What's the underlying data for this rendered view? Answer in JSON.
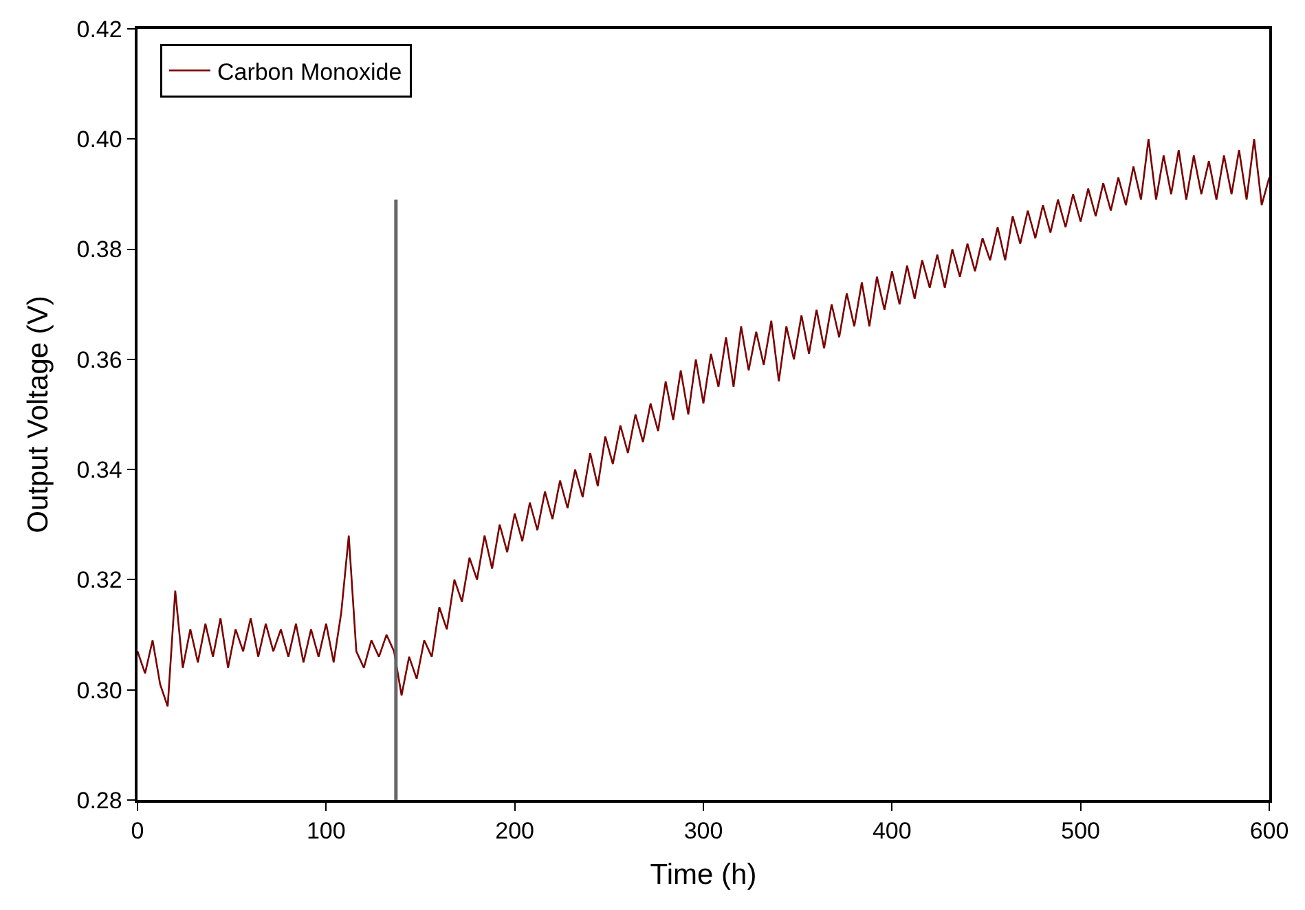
{
  "chart_data": {
    "type": "line",
    "xlabel": "Time (h)",
    "ylabel": "Output Voltage (V)",
    "xlim": [
      0,
      600
    ],
    "xticks": [
      0,
      100,
      200,
      300,
      400,
      500,
      600
    ],
    "ylim": [
      0.28,
      0.42
    ],
    "yticks": [
      0.28,
      {
        "value": 0.3,
        "label": "0.30"
      },
      0.32,
      0.34,
      0.36,
      0.38,
      {
        "value": 0.4,
        "label": "0.40"
      },
      0.42
    ],
    "legend": "top left",
    "marker": "none",
    "line_style": "solid",
    "series": [
      {
        "name": "Carbon Monoxide",
        "color": "#7b0000",
        "x": [
          0,
          4,
          8,
          12,
          16,
          20,
          24,
          28,
          32,
          36,
          40,
          44,
          48,
          52,
          56,
          60,
          64,
          68,
          72,
          76,
          80,
          84,
          88,
          92,
          96,
          100,
          104,
          108,
          112,
          116,
          120,
          124,
          128,
          132,
          136,
          140,
          144,
          148,
          152,
          156,
          160,
          164,
          168,
          172,
          176,
          180,
          184,
          188,
          192,
          196,
          200,
          204,
          208,
          212,
          216,
          220,
          224,
          228,
          232,
          236,
          240,
          244,
          248,
          252,
          256,
          260,
          264,
          268,
          272,
          276,
          280,
          284,
          288,
          292,
          296,
          300,
          304,
          308,
          312,
          316,
          320,
          324,
          328,
          332,
          336,
          340,
          344,
          348,
          352,
          356,
          360,
          364,
          368,
          372,
          376,
          380,
          384,
          388,
          392,
          396,
          400,
          404,
          408,
          412,
          416,
          420,
          424,
          428,
          432,
          436,
          440,
          444,
          448,
          452,
          456,
          460,
          464,
          468,
          472,
          476,
          480,
          484,
          488,
          492,
          496,
          500,
          504,
          508,
          512,
          516,
          520,
          524,
          528,
          532,
          536,
          540,
          544,
          548,
          552,
          556,
          560,
          564,
          568,
          572,
          576,
          580,
          584,
          588,
          592,
          596,
          600
        ],
        "values": [
          0.307,
          0.303,
          0.309,
          0.301,
          0.297,
          0.318,
          0.304,
          0.311,
          0.305,
          0.312,
          0.306,
          0.313,
          0.304,
          0.311,
          0.307,
          0.313,
          0.306,
          0.312,
          0.307,
          0.311,
          0.306,
          0.312,
          0.305,
          0.311,
          0.306,
          0.312,
          0.305,
          0.314,
          0.328,
          0.307,
          0.304,
          0.309,
          0.306,
          0.31,
          0.307,
          0.299,
          0.306,
          0.302,
          0.309,
          0.306,
          0.315,
          0.311,
          0.32,
          0.316,
          0.324,
          0.32,
          0.328,
          0.322,
          0.33,
          0.325,
          0.332,
          0.327,
          0.334,
          0.329,
          0.336,
          0.331,
          0.338,
          0.333,
          0.34,
          0.335,
          0.343,
          0.337,
          0.346,
          0.341,
          0.348,
          0.343,
          0.35,
          0.345,
          0.352,
          0.347,
          0.356,
          0.349,
          0.358,
          0.35,
          0.36,
          0.352,
          0.361,
          0.355,
          0.364,
          0.355,
          0.366,
          0.358,
          0.365,
          0.359,
          0.367,
          0.356,
          0.366,
          0.36,
          0.368,
          0.361,
          0.369,
          0.362,
          0.37,
          0.364,
          0.372,
          0.366,
          0.374,
          0.366,
          0.375,
          0.369,
          0.376,
          0.37,
          0.377,
          0.371,
          0.378,
          0.373,
          0.379,
          0.373,
          0.38,
          0.375,
          0.381,
          0.376,
          0.382,
          0.378,
          0.384,
          0.378,
          0.386,
          0.381,
          0.387,
          0.382,
          0.388,
          0.383,
          0.389,
          0.384,
          0.39,
          0.385,
          0.391,
          0.386,
          0.392,
          0.387,
          0.393,
          0.388,
          0.395,
          0.389,
          0.4,
          0.389,
          0.397,
          0.39,
          0.398,
          0.389,
          0.397,
          0.39,
          0.396,
          0.389,
          0.397,
          0.39,
          0.398,
          0.389,
          0.4,
          0.388,
          0.393
        ]
      },
      {
        "color": "#666666",
        "x": [
          137,
          137
        ],
        "values": [
          0.28,
          0.389
        ]
      }
    ]
  }
}
